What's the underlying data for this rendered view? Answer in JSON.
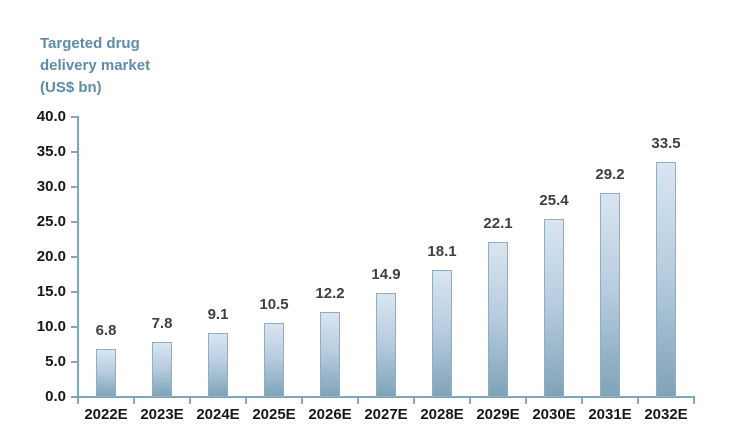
{
  "chart_data": {
    "type": "bar",
    "title": "Targeted drug delivery market (US$ bn)",
    "title_lines": [
      "Targeted drug",
      "delivery market",
      "(US$ bn)"
    ],
    "categories": [
      "2022E",
      "2023E",
      "2024E",
      "2025E",
      "2026E",
      "2027E",
      "2028E",
      "2029E",
      "2030E",
      "2031E",
      "2032E"
    ],
    "values": [
      6.8,
      7.8,
      9.1,
      10.5,
      12.2,
      14.9,
      18.1,
      22.1,
      25.4,
      29.2,
      33.5
    ],
    "xlabel": "",
    "ylabel": "",
    "ylim": [
      0,
      40
    ],
    "ytick_step": 5,
    "ytick_decimals": 1,
    "value_label_decimals": 1,
    "grid": false,
    "legend": false,
    "colors": {
      "background": "#FFFFFF",
      "title": "#5E8CA9",
      "axis_line": "#7FA6BE",
      "bar_fill_top": "#D9E5F1",
      "bar_fill_bottom": "#7FA3B9",
      "bar_border": "#8FAEC2",
      "value_label": "#3F3F3F",
      "tick_label": "#171717"
    }
  }
}
